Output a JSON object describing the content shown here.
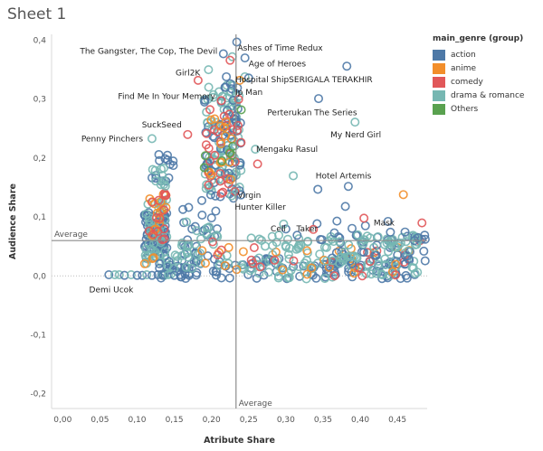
{
  "sheet_title": "Sheet 1",
  "legend_title": "main_genre (group)",
  "chart_data": {
    "type": "scatter",
    "xlabel": "Atribute Share",
    "ylabel": "Audience Share",
    "xlim": [
      -0.015,
      0.49
    ],
    "ylim": [
      -0.225,
      0.41
    ],
    "x_ticks": [
      0.0,
      0.05,
      0.1,
      0.15,
      0.2,
      0.25,
      0.3,
      0.35,
      0.4,
      0.45
    ],
    "x_tick_labels": [
      "0,00",
      "0,05",
      "0,10",
      "0,15",
      "0,20",
      "0,25",
      "0,30",
      "0,35",
      "0,40",
      "0,45"
    ],
    "y_ticks": [
      -0.2,
      -0.1,
      0.0,
      0.1,
      0.2,
      0.3,
      0.4
    ],
    "y_tick_labels": [
      "-0,2",
      "-0,1",
      "0,0",
      "0,1",
      "0,2",
      "0,3",
      "0,4"
    ],
    "reference_lines": {
      "x_average": 0.233,
      "y_average": 0.06,
      "x_label": "Average",
      "y_label": "Average"
    },
    "legend_position": "right",
    "series": [
      {
        "name": "action",
        "color": "#4e79a7"
      },
      {
        "name": "anime",
        "color": "#f28e2b"
      },
      {
        "name": "comedy",
        "color": "#e15759"
      },
      {
        "name": "drama & romance",
        "color": "#76b7b2"
      },
      {
        "name": "Others",
        "color": "#59a14f"
      }
    ],
    "annotations": [
      {
        "text": "Ashes of Time Redux",
        "x": 0.235,
        "y": 0.387
      },
      {
        "text": "The Gangster, The Cop, The Devil",
        "x": 0.208,
        "y": 0.382
      },
      {
        "text": "Age of Heroes",
        "x": 0.25,
        "y": 0.36
      },
      {
        "text": "Girl2K",
        "x": 0.185,
        "y": 0.345
      },
      {
        "text": "Hospital ShipSERIGALA TERAKHIR",
        "x": 0.232,
        "y": 0.333
      },
      {
        "text": "Ip Man",
        "x": 0.232,
        "y": 0.312
      },
      {
        "text": "Find Me In Your Memory",
        "x": 0.205,
        "y": 0.305
      },
      {
        "text": "Perterukan The Series",
        "x": 0.275,
        "y": 0.277
      },
      {
        "text": "SuckSeed",
        "x": 0.16,
        "y": 0.257
      },
      {
        "text": "My Nerd Girl",
        "x": 0.36,
        "y": 0.24
      },
      {
        "text": "Penny Pinchers",
        "x": 0.108,
        "y": 0.233
      },
      {
        "text": "Mengaku Rasul",
        "x": 0.26,
        "y": 0.215
      },
      {
        "text": "Hotel Artemis",
        "x": 0.34,
        "y": 0.17
      },
      {
        "text": "Virgin",
        "x": 0.235,
        "y": 0.137
      },
      {
        "text": "Hunter Killer",
        "x": 0.3,
        "y": 0.117
      },
      {
        "text": "Mask",
        "x": 0.418,
        "y": 0.09
      },
      {
        "text": "Cell",
        "x": 0.3,
        "y": 0.08
      },
      {
        "text": "Taker",
        "x": 0.343,
        "y": 0.08
      },
      {
        "text": "Demi Ucok",
        "x": 0.095,
        "y": -0.023
      }
    ],
    "clusters": [
      {
        "series": "action",
        "n": 80,
        "x": [
          0.11,
          0.14
        ],
        "y": [
          0.03,
          0.11
        ]
      },
      {
        "series": "drama & romance",
        "n": 45,
        "x": [
          0.11,
          0.14
        ],
        "y": [
          0.02,
          0.13
        ]
      },
      {
        "series": "anime",
        "n": 18,
        "x": [
          0.11,
          0.14
        ],
        "y": [
          0.02,
          0.14
        ]
      },
      {
        "series": "comedy",
        "n": 14,
        "x": [
          0.11,
          0.14
        ],
        "y": [
          0.05,
          0.16
        ]
      },
      {
        "series": "action",
        "n": 14,
        "x": [
          0.12,
          0.15
        ],
        "y": [
          0.16,
          0.21
        ]
      },
      {
        "series": "drama & romance",
        "n": 10,
        "x": [
          0.12,
          0.14
        ],
        "y": [
          0.15,
          0.2
        ]
      },
      {
        "series": "drama & romance",
        "n": 90,
        "x": [
          0.19,
          0.24
        ],
        "y": [
          0.14,
          0.33
        ]
      },
      {
        "series": "action",
        "n": 55,
        "x": [
          0.19,
          0.24
        ],
        "y": [
          0.13,
          0.33
        ]
      },
      {
        "series": "comedy",
        "n": 30,
        "x": [
          0.19,
          0.24
        ],
        "y": [
          0.14,
          0.3
        ]
      },
      {
        "series": "anime",
        "n": 14,
        "x": [
          0.19,
          0.23
        ],
        "y": [
          0.14,
          0.27
        ]
      },
      {
        "series": "Others",
        "n": 6,
        "x": [
          0.19,
          0.24
        ],
        "y": [
          0.16,
          0.24
        ]
      },
      {
        "series": "action",
        "n": 35,
        "x": [
          0.16,
          0.21
        ],
        "y": [
          0.0,
          0.12
        ]
      },
      {
        "series": "drama & romance",
        "n": 20,
        "x": [
          0.16,
          0.21
        ],
        "y": [
          0.0,
          0.1
        ]
      },
      {
        "series": "action",
        "n": 110,
        "x": [
          0.13,
          0.48
        ],
        "y": [
          -0.005,
          0.03
        ]
      },
      {
        "series": "drama & romance",
        "n": 80,
        "x": [
          0.13,
          0.48
        ],
        "y": [
          -0.005,
          0.04
        ]
      },
      {
        "series": "anime",
        "n": 25,
        "x": [
          0.18,
          0.48
        ],
        "y": [
          0.0,
          0.05
        ]
      },
      {
        "series": "comedy",
        "n": 20,
        "x": [
          0.2,
          0.48
        ],
        "y": [
          0.0,
          0.06
        ]
      },
      {
        "series": "action",
        "n": 40,
        "x": [
          0.36,
          0.49
        ],
        "y": [
          0.02,
          0.07
        ]
      },
      {
        "series": "drama & romance",
        "n": 30,
        "x": [
          0.35,
          0.49
        ],
        "y": [
          0.02,
          0.07
        ]
      },
      {
        "series": "drama & romance",
        "n": 40,
        "x": [
          0.25,
          0.48
        ],
        "y": [
          0.045,
          0.07
        ]
      },
      {
        "series": "action",
        "n": 12,
        "x": [
          0.3,
          0.47
        ],
        "y": [
          0.06,
          0.1
        ]
      }
    ],
    "points": [
      {
        "series": "action",
        "x": 0.234,
        "y": 0.397
      },
      {
        "series": "action",
        "x": 0.216,
        "y": 0.377
      },
      {
        "series": "action",
        "x": 0.245,
        "y": 0.37
      },
      {
        "series": "drama & romance",
        "x": 0.228,
        "y": 0.372
      },
      {
        "series": "comedy",
        "x": 0.225,
        "y": 0.366
      },
      {
        "series": "action",
        "x": 0.382,
        "y": 0.356
      },
      {
        "series": "drama & romance",
        "x": 0.196,
        "y": 0.35
      },
      {
        "series": "comedy",
        "x": 0.182,
        "y": 0.332
      },
      {
        "series": "action",
        "x": 0.22,
        "y": 0.338
      },
      {
        "series": "drama & romance",
        "x": 0.245,
        "y": 0.338
      },
      {
        "series": "anime",
        "x": 0.238,
        "y": 0.332
      },
      {
        "series": "action",
        "x": 0.25,
        "y": 0.336
      },
      {
        "series": "drama & romance",
        "x": 0.225,
        "y": 0.312
      },
      {
        "series": "action",
        "x": 0.218,
        "y": 0.32
      },
      {
        "series": "action",
        "x": 0.344,
        "y": 0.301
      },
      {
        "series": "Others",
        "x": 0.24,
        "y": 0.282
      },
      {
        "series": "drama & romance",
        "x": 0.393,
        "y": 0.261
      },
      {
        "series": "comedy",
        "x": 0.168,
        "y": 0.24
      },
      {
        "series": "drama & romance",
        "x": 0.12,
        "y": 0.233
      },
      {
        "series": "drama & romance",
        "x": 0.259,
        "y": 0.215
      },
      {
        "series": "comedy",
        "x": 0.262,
        "y": 0.19
      },
      {
        "series": "drama & romance",
        "x": 0.31,
        "y": 0.17
      },
      {
        "series": "action",
        "x": 0.384,
        "y": 0.152
      },
      {
        "series": "action",
        "x": 0.343,
        "y": 0.147
      },
      {
        "series": "drama & romance",
        "x": 0.227,
        "y": 0.136
      },
      {
        "series": "action",
        "x": 0.187,
        "y": 0.128
      },
      {
        "series": "action",
        "x": 0.38,
        "y": 0.118
      },
      {
        "series": "comedy",
        "x": 0.405,
        "y": 0.098
      },
      {
        "series": "anime",
        "x": 0.458,
        "y": 0.138
      },
      {
        "series": "comedy",
        "x": 0.483,
        "y": 0.09
      },
      {
        "series": "drama & romance",
        "x": 0.297,
        "y": 0.088
      },
      {
        "series": "comedy",
        "x": 0.337,
        "y": 0.079
      },
      {
        "series": "action",
        "x": 0.473,
        "y": 0.06
      },
      {
        "series": "action",
        "x": 0.478,
        "y": 0.065
      },
      {
        "series": "drama & romance",
        "x": 0.305,
        "y": 0.047
      },
      {
        "series": "action",
        "x": 0.062,
        "y": 0.002
      },
      {
        "series": "drama & romance",
        "x": 0.07,
        "y": 0.002
      },
      {
        "series": "drama & romance",
        "x": 0.076,
        "y": 0.002
      },
      {
        "series": "action",
        "x": 0.083,
        "y": 0.001
      },
      {
        "series": "drama & romance",
        "x": 0.092,
        "y": 0.002
      },
      {
        "series": "action",
        "x": 0.1,
        "y": 0.001
      },
      {
        "series": "action",
        "x": 0.107,
        "y": 0.001
      },
      {
        "series": "drama & romance",
        "x": 0.113,
        "y": 0.002
      },
      {
        "series": "action",
        "x": 0.12,
        "y": 0.001
      },
      {
        "series": "action",
        "x": 0.128,
        "y": 0.002
      },
      {
        "series": "action",
        "x": 0.135,
        "y": 0.001
      },
      {
        "series": "drama & romance",
        "x": 0.142,
        "y": 0.002
      },
      {
        "series": "action",
        "x": 0.15,
        "y": 0.001
      },
      {
        "series": "action",
        "x": 0.158,
        "y": 0.002
      }
    ]
  }
}
